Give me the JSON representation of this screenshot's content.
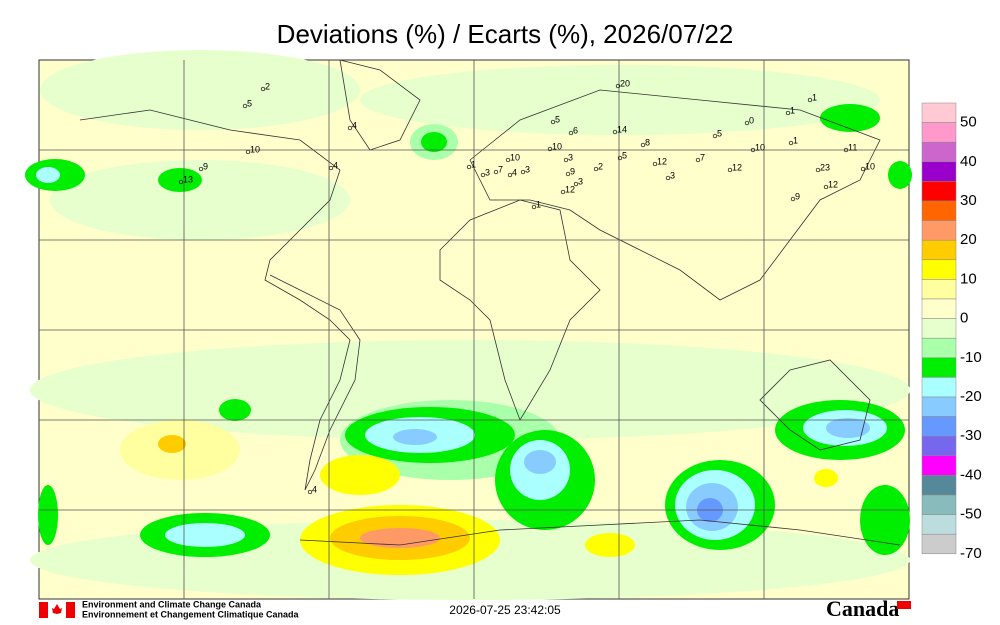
{
  "header": {
    "title": "Deviations (%) / Ecarts (%), 2026/07/22"
  },
  "colorbar": {
    "labels": [
      "50",
      "40",
      "30",
      "20",
      "10",
      "0",
      "-10",
      "-20",
      "-30",
      "-40",
      "-50",
      "-70"
    ],
    "colors": [
      "#ffcad4",
      "#ff99cc",
      "#cc66cc",
      "#9900cc",
      "#ff0000",
      "#ff6600",
      "#ff9966",
      "#ffcc00",
      "#ffff00",
      "#ffffa0",
      "#ffffcc",
      "#e6ffcc",
      "#aaffaa",
      "#00ee00",
      "#aaffff",
      "#88ccff",
      "#6699ff",
      "#7766ee",
      "#ff00ff",
      "#558899",
      "#88bbbb",
      "#bbdddd",
      "#cccccc"
    ]
  },
  "stations": [
    "2",
    "5",
    "4",
    "10",
    "9",
    "13",
    "4",
    "20",
    "5",
    "6",
    "14",
    "5",
    "0",
    "1",
    "1",
    "1",
    "10",
    "10",
    "10",
    "1",
    "3",
    "7",
    "4",
    "3",
    "3",
    "2",
    "5",
    "8",
    "12",
    "7",
    "12",
    "3",
    "9",
    "3",
    "12",
    "1",
    "23",
    "11",
    "10",
    "12",
    "9",
    "4"
  ],
  "footer": {
    "agency_en": "Environment and Climate Change Canada",
    "agency_fr": "Environnement et Changement Climatique Canada",
    "timestamp": "2026-07-25 23:42:05",
    "wordmark": "Canada"
  }
}
